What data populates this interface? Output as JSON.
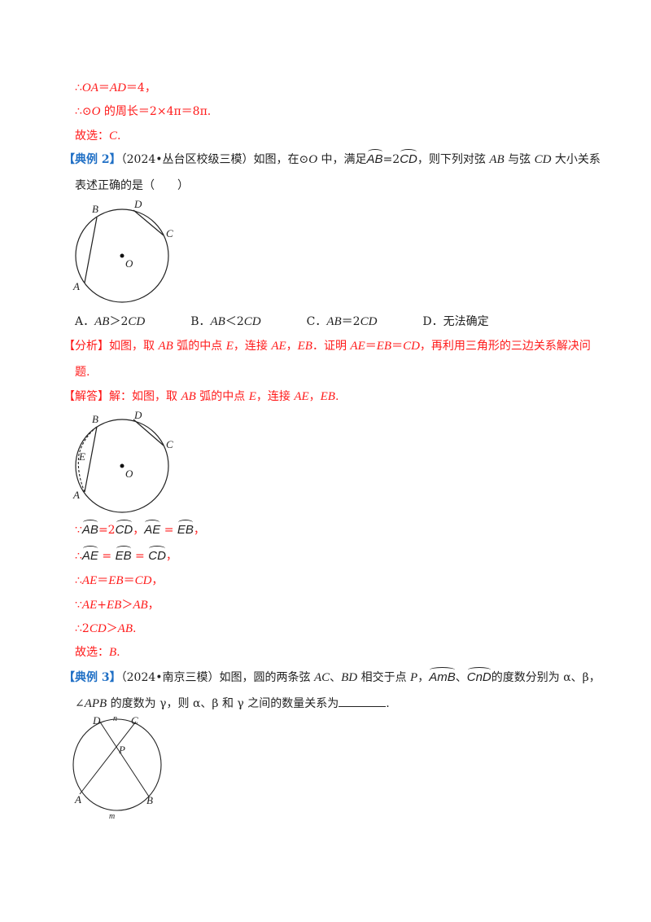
{
  "colors": {
    "answer": "#ff1a1a",
    "label": "#1f6fc5",
    "text": "#222222"
  },
  "lines": [
    {
      "cls": "red",
      "segs": [
        {
          "t": "∴"
        },
        {
          "t": "OA",
          "k": "i"
        },
        {
          "t": "＝"
        },
        {
          "t": "AD",
          "k": "i"
        },
        {
          "t": "＝4，"
        }
      ]
    },
    {
      "cls": "red",
      "segs": [
        {
          "t": "∴⊙"
        },
        {
          "t": "O",
          "k": "i"
        },
        {
          "t": " 的周长＝2×4π＝8π."
        }
      ]
    },
    {
      "cls": "red",
      "segs": [
        {
          "t": "故选："
        },
        {
          "t": "C",
          "k": "i"
        },
        {
          "t": "."
        }
      ]
    },
    {
      "cls": "blk",
      "segs": [
        {
          "t": "【典例 2】",
          "k": "label"
        },
        {
          "t": "（2024•丛台区校级三模）如图，在⊙"
        },
        {
          "t": "O",
          "k": "i"
        },
        {
          "t": " 中，满足"
        },
        {
          "t": "AB",
          "k": "arc"
        },
        {
          "t": "=2"
        },
        {
          "t": "CD",
          "k": "arc"
        },
        {
          "t": "，则下列对弦 "
        },
        {
          "t": "AB",
          "k": "i"
        },
        {
          "t": " 与弦 "
        },
        {
          "t": "CD",
          "k": "i"
        },
        {
          "t": " 大小关系"
        }
      ]
    },
    {
      "cls": "blk",
      "segs": [
        {
          "t": "表述正确的是（　　）"
        }
      ]
    },
    {
      "cls": "blk",
      "segs": [
        {
          "t": "A．"
        },
        {
          "t": "AB",
          "k": "i"
        },
        {
          "t": "＞2"
        },
        {
          "t": "CD",
          "k": "i"
        },
        {
          "t": "　　　　B．"
        },
        {
          "t": "AB",
          "k": "i"
        },
        {
          "t": "＜2"
        },
        {
          "t": "CD",
          "k": "i"
        },
        {
          "t": "　　　　C．"
        },
        {
          "t": "AB",
          "k": "i"
        },
        {
          "t": "＝2"
        },
        {
          "t": "CD",
          "k": "i"
        },
        {
          "t": "　　　　D．无法确定"
        }
      ]
    },
    {
      "cls": "red",
      "segs": [
        {
          "t": "【分析】如图，取 "
        },
        {
          "t": "AB",
          "k": "i"
        },
        {
          "t": " 弧的中点 "
        },
        {
          "t": "E",
          "k": "i"
        },
        {
          "t": "，连接 "
        },
        {
          "t": "AE",
          "k": "i"
        },
        {
          "t": "，"
        },
        {
          "t": "EB",
          "k": "i"
        },
        {
          "t": "．证明 "
        },
        {
          "t": "AE",
          "k": "i"
        },
        {
          "t": "＝"
        },
        {
          "t": "EB",
          "k": "i"
        },
        {
          "t": "＝"
        },
        {
          "t": "CD",
          "k": "i"
        },
        {
          "t": "，再利用三角形的三边关系解决问"
        }
      ]
    },
    {
      "cls": "red",
      "segs": [
        {
          "t": "题."
        }
      ]
    },
    {
      "cls": "red",
      "segs": [
        {
          "t": "【解答】解：如图，取 "
        },
        {
          "t": "AB",
          "k": "i"
        },
        {
          "t": " 弧的中点 "
        },
        {
          "t": "E",
          "k": "i"
        },
        {
          "t": "，连接 "
        },
        {
          "t": "AE",
          "k": "i"
        },
        {
          "t": "，"
        },
        {
          "t": "EB",
          "k": "i"
        },
        {
          "t": "."
        }
      ]
    },
    {
      "cls": "red",
      "segs": [
        {
          "t": "∵"
        },
        {
          "t": "AB",
          "k": "arc"
        },
        {
          "t": "=2"
        },
        {
          "t": "CD",
          "k": "arc"
        },
        {
          "t": "，"
        },
        {
          "t": "AE",
          "k": "arc"
        },
        {
          "t": " = "
        },
        {
          "t": "EB",
          "k": "arc"
        },
        {
          "t": "，"
        }
      ]
    },
    {
      "cls": "red",
      "segs": [
        {
          "t": "∴"
        },
        {
          "t": "AE",
          "k": "arc"
        },
        {
          "t": " = "
        },
        {
          "t": "EB",
          "k": "arc"
        },
        {
          "t": " = "
        },
        {
          "t": "CD",
          "k": "arc"
        },
        {
          "t": "，"
        }
      ]
    },
    {
      "cls": "red",
      "segs": [
        {
          "t": "∴"
        },
        {
          "t": "AE",
          "k": "i"
        },
        {
          "t": "＝"
        },
        {
          "t": "EB",
          "k": "i"
        },
        {
          "t": "＝"
        },
        {
          "t": "CD",
          "k": "i"
        },
        {
          "t": "，"
        }
      ]
    },
    {
      "cls": "red",
      "segs": [
        {
          "t": "∵"
        },
        {
          "t": "AE",
          "k": "i"
        },
        {
          "t": "+"
        },
        {
          "t": "EB",
          "k": "i"
        },
        {
          "t": "＞"
        },
        {
          "t": "AB",
          "k": "i"
        },
        {
          "t": "，"
        }
      ]
    },
    {
      "cls": "red",
      "segs": [
        {
          "t": "∴2"
        },
        {
          "t": "CD",
          "k": "i"
        },
        {
          "t": "＞"
        },
        {
          "t": "AB",
          "k": "i"
        },
        {
          "t": "."
        }
      ]
    },
    {
      "cls": "red",
      "segs": [
        {
          "t": "故选："
        },
        {
          "t": "B",
          "k": "i"
        },
        {
          "t": "."
        }
      ]
    },
    {
      "cls": "blk",
      "segs": [
        {
          "t": "【典例 3】",
          "k": "label"
        },
        {
          "t": "（2024•南京三模）如图，圆的两条弦 "
        },
        {
          "t": "AC",
          "k": "i"
        },
        {
          "t": "、"
        },
        {
          "t": "BD",
          "k": "i"
        },
        {
          "t": " 相交于点 "
        },
        {
          "t": "P",
          "k": "i"
        },
        {
          "t": "，"
        },
        {
          "t": "AmB",
          "k": "arc"
        },
        {
          "t": "、"
        },
        {
          "t": "CnD",
          "k": "arc"
        },
        {
          "t": "的度数分别为 α、β，"
        }
      ]
    },
    {
      "cls": "blk",
      "segs": [
        {
          "t": "∠"
        },
        {
          "t": "APB",
          "k": "i"
        },
        {
          "t": " 的度数为 γ，则 α、β 和 γ 之间的数量关系为"
        },
        {
          "t": "",
          "k": "blank"
        },
        {
          "t": "."
        }
      ]
    }
  ],
  "figures": {
    "fig1": {
      "A": "A",
      "B": "B",
      "C": "C",
      "D": "D",
      "O": "O"
    },
    "fig2": {
      "A": "A",
      "B": "B",
      "C": "C",
      "D": "D",
      "O": "O",
      "E": "E"
    },
    "fig3": {
      "A": "A",
      "B": "B",
      "C": "C",
      "D": "D",
      "P": "P",
      "m": "m",
      "n": "n"
    }
  }
}
